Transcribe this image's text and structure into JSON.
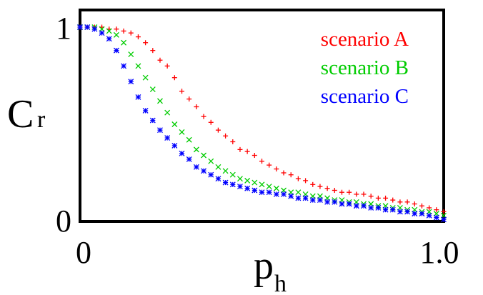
{
  "chart_data": {
    "type": "scatter",
    "xlabel": "p",
    "xlabel_sub": "h",
    "ylabel": "C",
    "ylabel_sub": "r",
    "xlim": [
      0,
      1.0
    ],
    "ylim": [
      0,
      1
    ],
    "x_ticks": [
      "0",
      "1.0"
    ],
    "y_ticks": [
      "0",
      "1"
    ],
    "grid": false,
    "legend_position": "top-right",
    "series": [
      {
        "name": "scenario A",
        "color": "#ff0000",
        "marker": "plus",
        "points": [
          [
            0.0,
            1.0
          ],
          [
            0.02,
            1.0
          ],
          [
            0.04,
            1.0
          ],
          [
            0.06,
            1.0
          ],
          [
            0.08,
            0.99
          ],
          [
            0.1,
            0.99
          ],
          [
            0.12,
            0.98
          ],
          [
            0.14,
            0.97
          ],
          [
            0.16,
            0.95
          ],
          [
            0.18,
            0.92
          ],
          [
            0.2,
            0.88
          ],
          [
            0.22,
            0.83
          ],
          [
            0.24,
            0.8
          ],
          [
            0.26,
            0.74
          ],
          [
            0.28,
            0.67
          ],
          [
            0.3,
            0.63
          ],
          [
            0.32,
            0.59
          ],
          [
            0.34,
            0.54
          ],
          [
            0.36,
            0.51
          ],
          [
            0.38,
            0.47
          ],
          [
            0.4,
            0.44
          ],
          [
            0.42,
            0.41
          ],
          [
            0.44,
            0.37
          ],
          [
            0.46,
            0.36
          ],
          [
            0.48,
            0.34
          ],
          [
            0.5,
            0.31
          ],
          [
            0.52,
            0.29
          ],
          [
            0.54,
            0.27
          ],
          [
            0.56,
            0.25
          ],
          [
            0.58,
            0.24
          ],
          [
            0.6,
            0.22
          ],
          [
            0.62,
            0.21
          ],
          [
            0.64,
            0.19
          ],
          [
            0.66,
            0.18
          ],
          [
            0.68,
            0.17
          ],
          [
            0.7,
            0.16
          ],
          [
            0.72,
            0.15
          ],
          [
            0.74,
            0.15
          ],
          [
            0.76,
            0.14
          ],
          [
            0.78,
            0.14
          ],
          [
            0.8,
            0.13
          ],
          [
            0.82,
            0.12
          ],
          [
            0.84,
            0.12
          ],
          [
            0.86,
            0.11
          ],
          [
            0.88,
            0.1
          ],
          [
            0.9,
            0.1
          ],
          [
            0.92,
            0.09
          ],
          [
            0.94,
            0.08
          ],
          [
            0.96,
            0.07
          ],
          [
            0.98,
            0.06
          ],
          [
            1.0,
            0.05
          ]
        ]
      },
      {
        "name": "scenario B",
        "color": "#00cc00",
        "marker": "cross",
        "points": [
          [
            0.0,
            1.0
          ],
          [
            0.02,
            1.0
          ],
          [
            0.04,
            1.0
          ],
          [
            0.06,
            0.99
          ],
          [
            0.08,
            0.98
          ],
          [
            0.1,
            0.96
          ],
          [
            0.12,
            0.92
          ],
          [
            0.14,
            0.86
          ],
          [
            0.16,
            0.8
          ],
          [
            0.18,
            0.74
          ],
          [
            0.2,
            0.68
          ],
          [
            0.22,
            0.62
          ],
          [
            0.24,
            0.56
          ],
          [
            0.26,
            0.5
          ],
          [
            0.28,
            0.46
          ],
          [
            0.3,
            0.42
          ],
          [
            0.32,
            0.37
          ],
          [
            0.34,
            0.34
          ],
          [
            0.36,
            0.31
          ],
          [
            0.38,
            0.28
          ],
          [
            0.4,
            0.26
          ],
          [
            0.42,
            0.24
          ],
          [
            0.44,
            0.22
          ],
          [
            0.46,
            0.21
          ],
          [
            0.48,
            0.2
          ],
          [
            0.5,
            0.19
          ],
          [
            0.52,
            0.18
          ],
          [
            0.54,
            0.17
          ],
          [
            0.56,
            0.16
          ],
          [
            0.58,
            0.15
          ],
          [
            0.6,
            0.15
          ],
          [
            0.62,
            0.14
          ],
          [
            0.64,
            0.13
          ],
          [
            0.66,
            0.13
          ],
          [
            0.68,
            0.12
          ],
          [
            0.7,
            0.11
          ],
          [
            0.72,
            0.11
          ],
          [
            0.74,
            0.1
          ],
          [
            0.76,
            0.1
          ],
          [
            0.78,
            0.09
          ],
          [
            0.8,
            0.09
          ],
          [
            0.82,
            0.08
          ],
          [
            0.84,
            0.08
          ],
          [
            0.86,
            0.07
          ],
          [
            0.88,
            0.07
          ],
          [
            0.9,
            0.06
          ],
          [
            0.92,
            0.06
          ],
          [
            0.94,
            0.05
          ],
          [
            0.96,
            0.05
          ],
          [
            0.98,
            0.04
          ],
          [
            1.0,
            0.03
          ]
        ]
      },
      {
        "name": "scenario C",
        "color": "#0000ff",
        "marker": "asterisk",
        "points": [
          [
            0.0,
            1.0
          ],
          [
            0.02,
            1.0
          ],
          [
            0.04,
            0.99
          ],
          [
            0.06,
            0.97
          ],
          [
            0.08,
            0.94
          ],
          [
            0.1,
            0.88
          ],
          [
            0.12,
            0.8
          ],
          [
            0.14,
            0.72
          ],
          [
            0.16,
            0.64
          ],
          [
            0.18,
            0.57
          ],
          [
            0.2,
            0.52
          ],
          [
            0.22,
            0.47
          ],
          [
            0.24,
            0.43
          ],
          [
            0.26,
            0.39
          ],
          [
            0.28,
            0.35
          ],
          [
            0.3,
            0.32
          ],
          [
            0.32,
            0.28
          ],
          [
            0.34,
            0.26
          ],
          [
            0.36,
            0.24
          ],
          [
            0.38,
            0.22
          ],
          [
            0.4,
            0.2
          ],
          [
            0.42,
            0.19
          ],
          [
            0.44,
            0.18
          ],
          [
            0.46,
            0.17
          ],
          [
            0.48,
            0.16
          ],
          [
            0.5,
            0.15
          ],
          [
            0.52,
            0.15
          ],
          [
            0.54,
            0.14
          ],
          [
            0.56,
            0.14
          ],
          [
            0.58,
            0.13
          ],
          [
            0.6,
            0.12
          ],
          [
            0.62,
            0.12
          ],
          [
            0.64,
            0.11
          ],
          [
            0.66,
            0.11
          ],
          [
            0.68,
            0.1
          ],
          [
            0.7,
            0.1
          ],
          [
            0.72,
            0.09
          ],
          [
            0.74,
            0.09
          ],
          [
            0.76,
            0.08
          ],
          [
            0.78,
            0.08
          ],
          [
            0.8,
            0.07
          ],
          [
            0.82,
            0.07
          ],
          [
            0.84,
            0.06
          ],
          [
            0.86,
            0.06
          ],
          [
            0.88,
            0.05
          ],
          [
            0.9,
            0.05
          ],
          [
            0.92,
            0.04
          ],
          [
            0.94,
            0.04
          ],
          [
            0.96,
            0.03
          ],
          [
            0.98,
            0.02
          ],
          [
            1.0,
            0.01
          ]
        ]
      }
    ]
  }
}
